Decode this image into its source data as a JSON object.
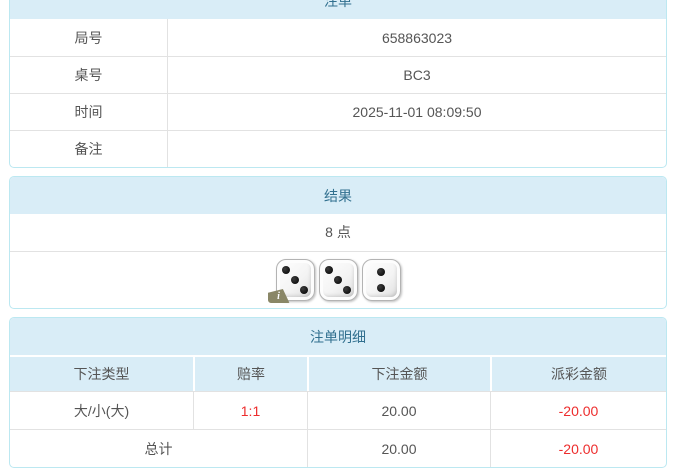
{
  "colors": {
    "panel_border": "#bce8f1",
    "heading_background": "#d9edf7",
    "heading_text": "#31708f",
    "row_border": "#e2e2e2",
    "body_text": "#555555",
    "negative_red": "#ed2d2d",
    "info_badge_olive": "#8a8767"
  },
  "bet_info": {
    "title": "注单",
    "rows": [
      {
        "label": "局号",
        "value": "658863023"
      },
      {
        "label": "桌号",
        "value": "BC3"
      },
      {
        "label": "时间",
        "value": "2025-11-01 08:09:50"
      },
      {
        "label": "备注",
        "value": ""
      }
    ]
  },
  "result": {
    "title": "结果",
    "points_text": "8 点",
    "dice": [
      3,
      3,
      2
    ],
    "info_badge_label": "i"
  },
  "bet_details": {
    "title": "注单明细",
    "columns": [
      "下注类型",
      "赔率",
      "下注金额",
      "派彩金额"
    ],
    "rows": [
      {
        "bet_type": "大/小(大)",
        "odds": "1:1",
        "bet_amount": "20.00",
        "payout": "-20.00"
      }
    ],
    "total": {
      "label": "总计",
      "bet_amount": "20.00",
      "payout": "-20.00"
    }
  }
}
